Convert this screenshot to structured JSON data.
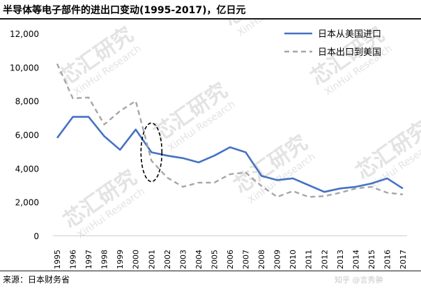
{
  "header": {
    "title": "半导体等电子部件的进出口变动(1995-2017)，亿日元"
  },
  "footer": {
    "source": "来源：日本财务省",
    "watermark": "知乎 @言秀翀"
  },
  "watermarks": {
    "brand": "芯汇研究",
    "sub": "XinHui Research"
  },
  "colors": {
    "import": "#4472c4",
    "export": "#a6a6a6",
    "highlight": "#000000"
  },
  "chart_data": {
    "type": "line",
    "title": "",
    "xlabel": "",
    "ylabel": "",
    "x": [
      "1995",
      "1996",
      "1997",
      "1998",
      "1999",
      "2000",
      "2001",
      "2002",
      "2003",
      "2004",
      "2005",
      "2006",
      "2007",
      "2008",
      "2009",
      "2010",
      "2011",
      "2012",
      "2013",
      "2014",
      "2015",
      "2016",
      "2017"
    ],
    "ylim": [
      0,
      12000
    ],
    "yticks": [
      0,
      2000,
      4000,
      6000,
      8000,
      10000,
      12000
    ],
    "ytick_labels": [
      "0",
      "2,000",
      "4,000",
      "6,000",
      "8,000",
      "10,000",
      "12,000"
    ],
    "grid": false,
    "legend_position": "top-right",
    "series": [
      {
        "name": "日本从美国进口",
        "style": "solid",
        "color": "#4472c4",
        "values": [
          5800,
          7050,
          7050,
          5900,
          5100,
          6300,
          4950,
          4750,
          4600,
          4350,
          4750,
          5250,
          4950,
          3550,
          3300,
          3400,
          3000,
          2600,
          2800,
          2900,
          3100,
          3400,
          2800
        ]
      },
      {
        "name": "日本出口到美国",
        "style": "dashed",
        "color": "#a6a6a6",
        "values": [
          10200,
          8150,
          8200,
          6600,
          7400,
          8000,
          4450,
          3450,
          2900,
          3150,
          3150,
          3650,
          3750,
          2950,
          2300,
          2650,
          2300,
          2350,
          2550,
          2800,
          2900,
          2550,
          2450
        ]
      }
    ],
    "annotation": {
      "type": "ellipse",
      "at_year": "2001"
    }
  }
}
